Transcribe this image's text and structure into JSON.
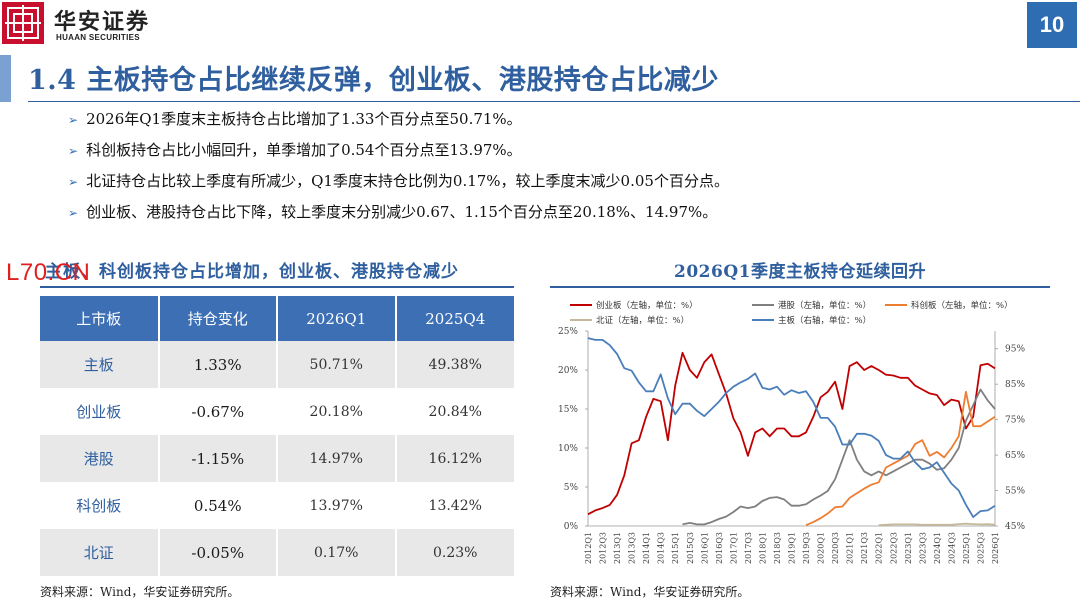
{
  "header": {
    "brand_cn": "华安证券",
    "brand_en": "HUAAN SECURITIES",
    "page_number": "10"
  },
  "title": "1.4 主板持仓占比继续反弹，创业板、港股持仓占比减少",
  "bullets": [
    "2026年Q1季度末主板持仓占比增加了1.33个百分点至50.71%。",
    "科创板持仓占比小幅回升，单季增加了0.54个百分点至13.97%。",
    "北证持仓占比较上季度有所减少，Q1季度末持仓比例为0.17%，较上季度末减少0.05个百分点。",
    "创业板、港股持仓占比下降，较上季度末分别减少0.67、1.15个百分点至20.18%、14.97%。"
  ],
  "watermark": "L70.CN",
  "left_panel": {
    "title": "主板、科创板持仓占比增加，创业板、港股持仓减少",
    "headers": [
      "上市板",
      "持仓变化",
      "2026Q1",
      "2025Q4"
    ],
    "rows": [
      [
        "主板",
        "1.33%",
        "50.71%",
        "49.38%"
      ],
      [
        "创业板",
        "-0.67%",
        "20.18%",
        "20.84%"
      ],
      [
        "港股",
        "-1.15%",
        "14.97%",
        "16.12%"
      ],
      [
        "科创板",
        "0.54%",
        "13.97%",
        "13.42%"
      ],
      [
        "北证",
        "-0.05%",
        "0.17%",
        "0.23%"
      ]
    ],
    "source": "资料来源：Wind，华安证券研究所。"
  },
  "right_panel": {
    "title": "2026Q1季度主板持仓延续回升",
    "source": "资料来源：Wind，华安证券研究所。"
  },
  "chart_data": {
    "type": "line",
    "x": [
      "2012Q1",
      "2012Q2",
      "2012Q3",
      "2012Q4",
      "2013Q1",
      "2013Q2",
      "2013Q3",
      "2013Q4",
      "2014Q1",
      "2014Q2",
      "2014Q3",
      "2014Q4",
      "2015Q1",
      "2015Q2",
      "2015Q3",
      "2015Q4",
      "2016Q1",
      "2016Q2",
      "2016Q3",
      "2016Q4",
      "2017Q1",
      "2017Q2",
      "2017Q3",
      "2017Q4",
      "2018Q1",
      "2018Q2",
      "2018Q3",
      "2018Q4",
      "2019Q1",
      "2019Q2",
      "2019Q3",
      "2019Q4",
      "2020Q1",
      "2020Q2",
      "2020Q3",
      "2020Q4",
      "2021Q1",
      "2021Q2",
      "2021Q3",
      "2021Q4",
      "2022Q1",
      "2022Q2",
      "2022Q3",
      "2022Q4",
      "2023Q1",
      "2023Q2",
      "2023Q3",
      "2023Q4",
      "2024Q1",
      "2024Q2",
      "2024Q3",
      "2024Q4",
      "2025Q1",
      "2025Q2",
      "2025Q3",
      "2025Q4",
      "2026Q1"
    ],
    "x_tick_labels": [
      "2012Q1",
      "2012Q3",
      "2013Q1",
      "2013Q3",
      "2014Q1",
      "2014Q3",
      "2015Q1",
      "2015Q3",
      "2016Q1",
      "2016Q3",
      "2017Q1",
      "2017Q3",
      "2018Q1",
      "2018Q3",
      "2019Q1",
      "2019Q3",
      "2020Q1",
      "2020Q3",
      "2021Q1",
      "2021Q3",
      "2022Q1",
      "2022Q3",
      "2023Q1",
      "2023Q3",
      "2024Q1",
      "2024Q3",
      "2025Q1",
      "2025Q3",
      "2026Q1"
    ],
    "y_left": {
      "ticks": [
        "0%",
        "5%",
        "10%",
        "15%",
        "20%",
        "25%"
      ],
      "range": [
        0,
        25
      ]
    },
    "y_right": {
      "ticks": [
        "45%",
        "55%",
        "65%",
        "75%",
        "85%",
        "95%"
      ],
      "range": [
        45,
        100
      ]
    },
    "series": [
      {
        "name": "创业板（左轴，单位：%）",
        "axis": "left",
        "color": "#c00000",
        "values": [
          1.5,
          2.0,
          2.3,
          2.7,
          4.0,
          6.5,
          10.6,
          11.0,
          14.0,
          16.3,
          16.0,
          11.0,
          18.0,
          22.2,
          20.0,
          19.0,
          21.0,
          22.0,
          19.5,
          17.0,
          13.8,
          12.0,
          9.0,
          12.0,
          12.5,
          11.5,
          12.5,
          12.5,
          11.5,
          11.5,
          12.0,
          14.0,
          16.5,
          17.2,
          18.5,
          15.0,
          20.5,
          21.0,
          20.0,
          20.5,
          20.0,
          19.4,
          19.3,
          19.0,
          19.0,
          18.0,
          17.5,
          17.0,
          16.8,
          15.5,
          16.2,
          16.0,
          12.5,
          14.0,
          20.6,
          20.8,
          20.2
        ]
      },
      {
        "name": "港股（左轴，单位：%）",
        "axis": "left",
        "color": "#7f7f7f",
        "values": [
          null,
          null,
          null,
          null,
          null,
          null,
          null,
          null,
          null,
          null,
          null,
          null,
          null,
          0.2,
          0.4,
          0.2,
          0.2,
          0.5,
          0.9,
          1.2,
          1.8,
          2.5,
          2.3,
          2.5,
          3.2,
          3.6,
          3.7,
          3.4,
          2.6,
          2.6,
          2.8,
          3.4,
          3.9,
          4.5,
          6.0,
          8.5,
          11.0,
          8.5,
          7.0,
          6.5,
          7.0,
          6.5,
          7.0,
          7.5,
          8.0,
          8.5,
          8.5,
          8.0,
          7.2,
          7.4,
          8.5,
          10.0,
          13.5,
          15.5,
          17.5,
          16.1,
          15.0
        ]
      },
      {
        "name": "科创板（左轴，单位：%）",
        "axis": "left",
        "color": "#ed7d31",
        "values": [
          null,
          null,
          null,
          null,
          null,
          null,
          null,
          null,
          null,
          null,
          null,
          null,
          null,
          null,
          null,
          null,
          null,
          null,
          null,
          null,
          null,
          null,
          null,
          null,
          null,
          null,
          null,
          null,
          null,
          null,
          0.1,
          0.5,
          1.0,
          1.6,
          2.4,
          2.5,
          3.6,
          4.2,
          4.8,
          5.3,
          5.6,
          7.5,
          8.0,
          8.5,
          9.0,
          10.5,
          11.0,
          9.0,
          9.5,
          8.8,
          10.0,
          11.5,
          17.2,
          12.8,
          12.8,
          13.4,
          14.0
        ]
      },
      {
        "name": "北证（左轴，单位：%）",
        "axis": "left",
        "color": "#c6b89a",
        "values": [
          null,
          null,
          null,
          null,
          null,
          null,
          null,
          null,
          null,
          null,
          null,
          null,
          null,
          null,
          null,
          null,
          null,
          null,
          null,
          null,
          null,
          null,
          null,
          null,
          null,
          null,
          null,
          null,
          null,
          null,
          null,
          null,
          null,
          null,
          null,
          null,
          null,
          null,
          null,
          null,
          0.1,
          0.15,
          0.2,
          0.2,
          0.2,
          0.2,
          0.15,
          0.15,
          0.15,
          0.15,
          0.15,
          0.25,
          0.3,
          0.25,
          0.2,
          0.23,
          0.17
        ]
      },
      {
        "name": "主板（右轴，单位：%）",
        "axis": "right",
        "color": "#4a7ebb",
        "values": [
          98,
          97.5,
          97.5,
          96,
          93.5,
          89.5,
          88.8,
          85.5,
          83,
          83,
          87.8,
          81,
          76.5,
          79.5,
          79.5,
          77.5,
          76,
          78,
          80,
          82.5,
          84.3,
          85.5,
          86.5,
          88,
          84,
          83.5,
          84.3,
          82,
          83.3,
          82.5,
          83,
          80,
          75.5,
          75.5,
          73,
          68,
          68,
          71,
          71,
          70.5,
          69,
          65,
          64,
          64,
          66,
          63,
          61,
          61.5,
          63,
          60,
          57,
          55,
          51,
          47.5,
          49.2,
          49.4,
          50.7
        ]
      }
    ],
    "grid": false,
    "legend_position": "top"
  }
}
